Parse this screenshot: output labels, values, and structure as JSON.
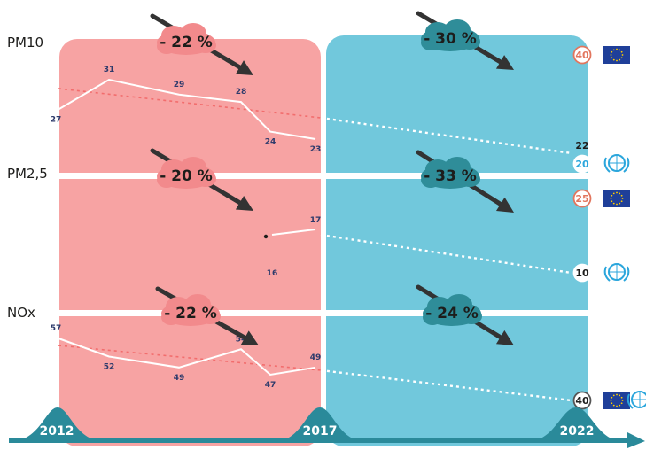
{
  "colors": {
    "past_panel": "#f7a3a3",
    "future_panel": "#71c8dc",
    "past_cloud": "#f28a8c",
    "future_cloud": "#2f8d99",
    "timeline": "#2a8a9a",
    "arrow": "#333333",
    "eu_flag": "#1f3f99",
    "eu_star": "#ffcc00",
    "who_icon": "#2ba6dc",
    "eu_limit_ring": "#e2765e",
    "white_line": "#ffffff"
  },
  "rows": [
    {
      "pollutant": "PM10",
      "past_values": [
        {
          "value": "27",
          "level": 27
        },
        {
          "value": "31",
          "level": 31
        },
        {
          "value": "29",
          "level": 29
        },
        {
          "value": "28",
          "level": 28
        },
        {
          "value": "24",
          "level": 24
        },
        {
          "value": "23",
          "level": 23
        }
      ],
      "past_trend": "- 22 %",
      "future_trend": "- 30 %",
      "projection": "22",
      "eu_limit": "40",
      "who_guideline": "20",
      "icons": [
        "eu-flag-icon",
        "who-emblem-icon"
      ]
    },
    {
      "pollutant": "PM2,5",
      "past_values": [
        {
          "value": "16",
          "level": 16
        },
        {
          "value": "17",
          "level": 17
        }
      ],
      "past_trend": "- 20 %",
      "future_trend": "- 33 %",
      "eu_limit": "25",
      "who_guideline": "10",
      "icons": [
        "eu-flag-icon",
        "who-emblem-icon"
      ]
    },
    {
      "pollutant": "NOx",
      "past_values": [
        {
          "value": "57",
          "level": 57
        },
        {
          "value": "52",
          "level": 52
        },
        {
          "value": "49",
          "level": 49
        },
        {
          "value": "54",
          "level": 54
        },
        {
          "value": "47",
          "level": 47
        },
        {
          "value": "49",
          "level": 49
        }
      ],
      "past_trend": "- 22 %",
      "future_trend": "- 24 %",
      "eu_who_limit": "40",
      "icons": [
        "eu-flag-icon",
        "who-emblem-icon"
      ]
    }
  ],
  "timeline": {
    "years": [
      "2012",
      "2017",
      "2022"
    ],
    "icon": "timeline-arrow-icon"
  }
}
